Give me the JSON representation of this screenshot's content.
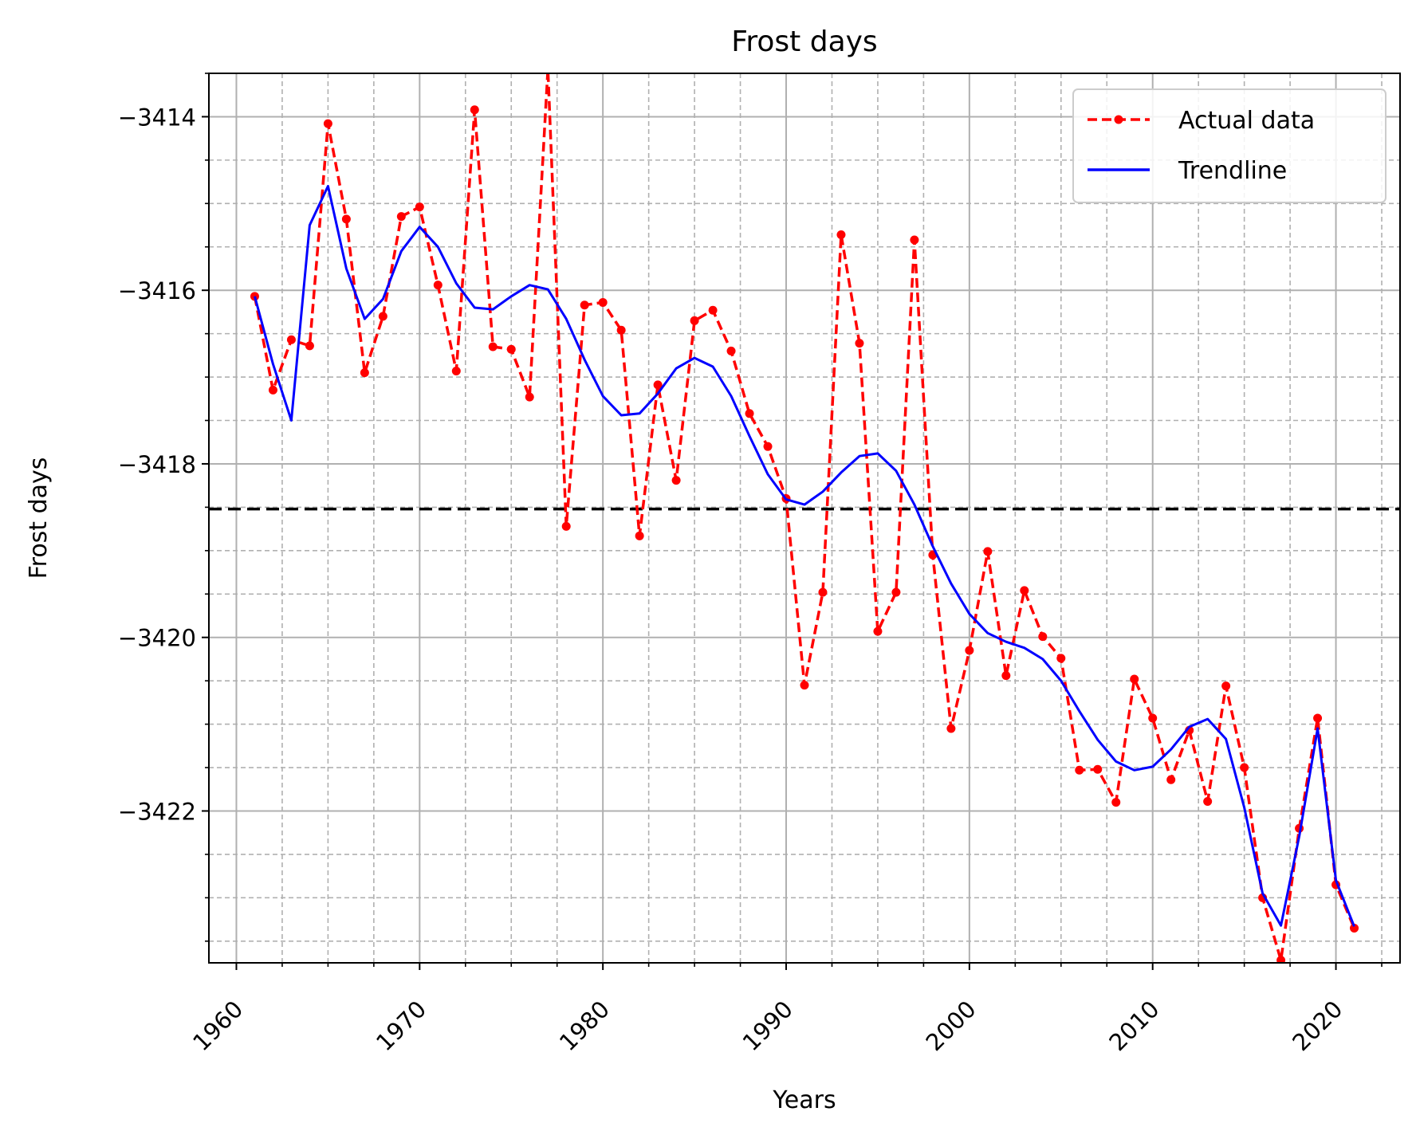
{
  "chart_data": {
    "type": "line",
    "title": "Frost days",
    "xlabel": "Years",
    "ylabel": "Frost days",
    "xlim": [
      1958.5,
      2023.5
    ],
    "ylim": [
      -3423.75,
      -3413.5
    ],
    "x_major_ticks": [
      1960,
      1970,
      1980,
      1990,
      2000,
      2010,
      2020
    ],
    "x_tick_labels": [
      "1960",
      "1970",
      "1980",
      "1990",
      "2000",
      "2010",
      "2020"
    ],
    "x_minor_step": 2.5,
    "y_major_ticks": [
      -3414,
      -3416,
      -3418,
      -3420,
      -3422
    ],
    "y_tick_labels": [
      "−3414",
      "−3416",
      "−3418",
      "−3420",
      "−3422"
    ],
    "y_minor_step": 0.5,
    "grid": true,
    "reference_line": {
      "y": -3418.52,
      "style": "dashed",
      "color": "#000000"
    },
    "legend": {
      "position": "top-right",
      "entries": [
        "Actual data",
        "Trendline"
      ]
    },
    "x": [
      1961,
      1962,
      1963,
      1964,
      1965,
      1966,
      1967,
      1968,
      1969,
      1970,
      1971,
      1972,
      1973,
      1974,
      1975,
      1976,
      1977,
      1978,
      1979,
      1980,
      1981,
      1982,
      1983,
      1984,
      1985,
      1986,
      1987,
      1988,
      1989,
      1990,
      1991,
      1992,
      1993,
      1994,
      1995,
      1996,
      1997,
      1998,
      1999,
      2000,
      2001,
      2002,
      2003,
      2004,
      2005,
      2006,
      2007,
      2008,
      2009,
      2010,
      2011,
      2012,
      2013,
      2014,
      2015,
      2016,
      2017,
      2018,
      2019,
      2020,
      2021
    ],
    "series": [
      {
        "name": "Actual data",
        "color": "#ff0000",
        "style": "dashed-with-markers",
        "values": [
          -3416.07,
          -3417.15,
          -3416.57,
          -3416.64,
          -3414.08,
          -3415.18,
          -3416.95,
          -3416.3,
          -3415.15,
          -3415.04,
          -3415.94,
          -3416.93,
          -3413.92,
          -3416.65,
          -3416.68,
          -3417.23,
          -3413.45,
          -3418.72,
          -3416.17,
          -3416.14,
          -3416.46,
          -3418.83,
          -3417.09,
          -3418.19,
          -3416.35,
          -3416.23,
          -3416.7,
          -3417.42,
          -3417.8,
          -3418.4,
          -3420.55,
          -3419.48,
          -3415.36,
          -3416.61,
          -3419.93,
          -3419.48,
          -3415.42,
          -3419.05,
          -3421.05,
          -3420.15,
          -3419.01,
          -3420.44,
          -3419.46,
          -3419.99,
          -3420.24,
          -3421.53,
          -3421.52,
          -3421.9,
          -3420.48,
          -3420.93,
          -3421.64,
          -3421.07,
          -3421.89,
          -3420.56,
          -3421.5,
          -3423.0,
          -3423.72,
          -3422.2,
          -3420.93,
          -3422.85,
          -3423.35
        ]
      },
      {
        "name": "Trendline",
        "color": "#0000ff",
        "style": "solid",
        "values": [
          -3416.07,
          -3416.85,
          -3417.5,
          -3415.25,
          -3414.8,
          -3415.75,
          -3416.33,
          -3416.1,
          -3415.55,
          -3415.27,
          -3415.5,
          -3415.92,
          -3416.2,
          -3416.22,
          -3416.07,
          -3415.94,
          -3415.99,
          -3416.33,
          -3416.8,
          -3417.22,
          -3417.44,
          -3417.42,
          -3417.19,
          -3416.9,
          -3416.78,
          -3416.88,
          -3417.22,
          -3417.68,
          -3418.12,
          -3418.41,
          -3418.47,
          -3418.32,
          -3418.1,
          -3417.91,
          -3417.88,
          -3418.08,
          -3418.47,
          -3418.95,
          -3419.38,
          -3419.73,
          -3419.95,
          -3420.05,
          -3420.12,
          -3420.25,
          -3420.5,
          -3420.85,
          -3421.18,
          -3421.43,
          -3421.53,
          -3421.49,
          -3421.29,
          -3421.03,
          -3420.94,
          -3421.17,
          -3421.96,
          -3422.95,
          -3423.32,
          -3422.29,
          -3421.05,
          -3422.8,
          -3423.33
        ]
      }
    ]
  }
}
